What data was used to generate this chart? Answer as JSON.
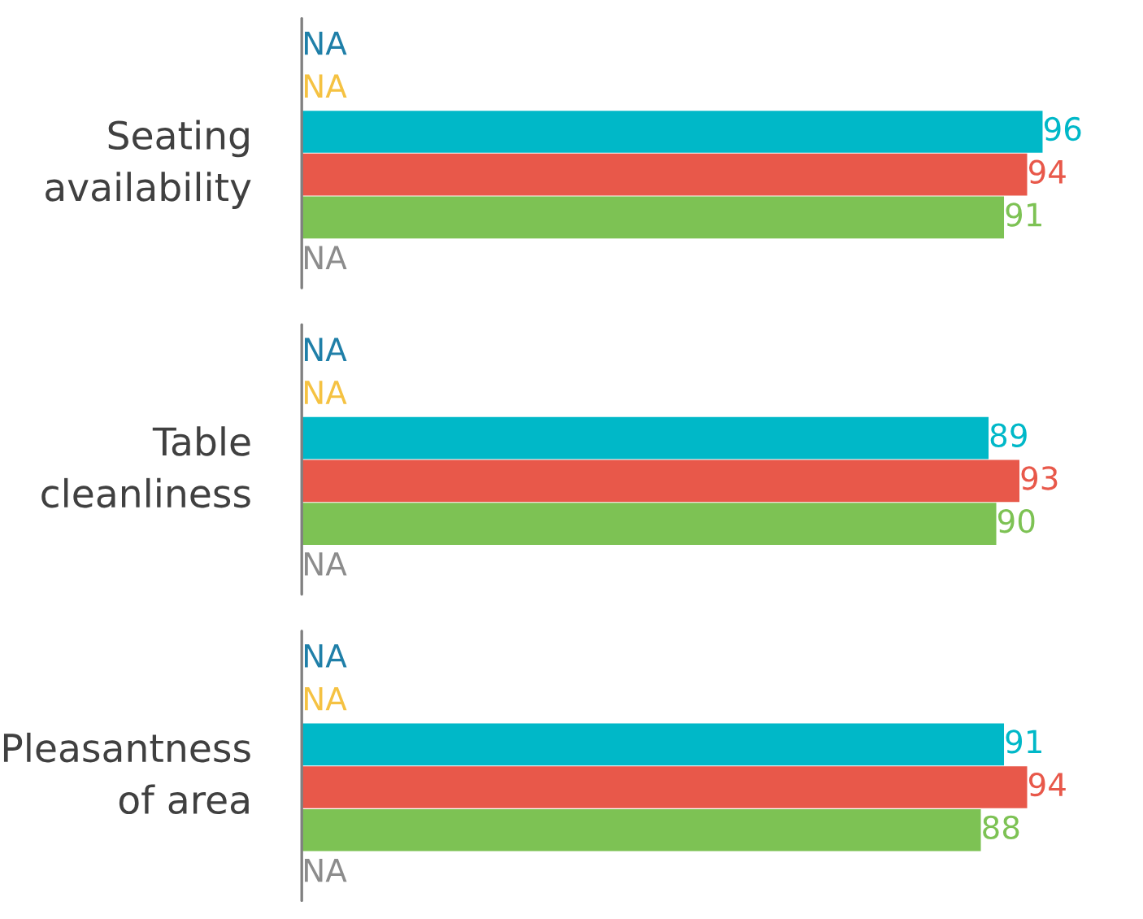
{
  "chart_data": {
    "type": "bar",
    "orientation": "horizontal",
    "categories": [
      "Seating\navailability",
      "Table\ncleanliness",
      "Pleasantness\nof area"
    ],
    "data_labels": true,
    "grid": false,
    "legend": false,
    "tick_labels": "y",
    "series": [
      {
        "color": "#1f7fa8",
        "values": [
          null,
          null,
          null
        ],
        "value_labels": [
          "NA",
          "NA",
          "NA"
        ]
      },
      {
        "color": "#f5c242",
        "values": [
          null,
          null,
          null
        ],
        "value_labels": [
          "NA",
          "NA",
          "NA"
        ]
      },
      {
        "color": "#00b8c8",
        "values": [
          96,
          89,
          91
        ]
      },
      {
        "color": "#e8584a",
        "values": [
          94,
          93,
          94
        ]
      },
      {
        "color": "#7dc254",
        "values": [
          91,
          90,
          88
        ]
      },
      {
        "color": "#8c8c8c",
        "values": [
          null,
          null,
          null
        ],
        "value_labels": [
          "NA",
          "NA",
          "NA"
        ]
      }
    ]
  }
}
